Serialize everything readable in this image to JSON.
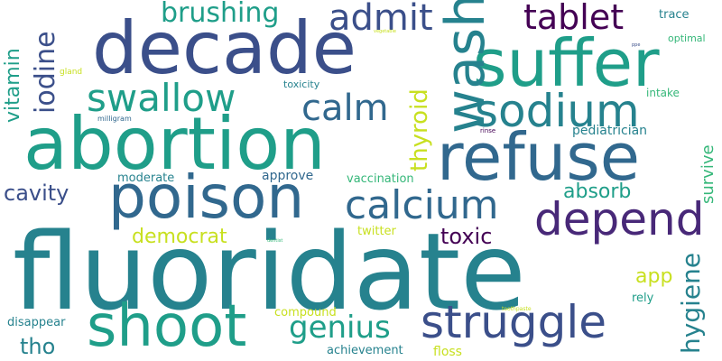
{
  "background": "#ffffff",
  "palette": {
    "navy": "#3b4f8a",
    "blue": "#31688e",
    "teal": "#26828e",
    "green": "#1f9e89",
    "lightgreen": "#35b779",
    "lime": "#6ece58",
    "yellow": "#c8e020",
    "purple": "#482878",
    "darkpurple": "#440154"
  },
  "words": {
    "fluoridate": "fluoridate",
    "abortion": "abortion",
    "decade": "decade",
    "suffer": "suffer",
    "refuse": "refuse",
    "poison": "poison",
    "shoot": "shoot",
    "struggle": "struggle",
    "sodium": "sodium",
    "wash": "wash",
    "swallow": "swallow",
    "calcium": "calcium",
    "depend": "depend",
    "calm": "calm",
    "admit": "admit",
    "tablet": "tablet",
    "brushing": "brushing",
    "iodine": "iodine",
    "vitamin": "vitamin",
    "thyroid": "thyroid",
    "cavity": "cavity",
    "absorb": "absorb",
    "democrat": "democrat",
    "toxic": "toxic",
    "genius": "genius",
    "hygiene": "hygiene",
    "app": "app",
    "tho": "tho",
    "survive": "survive",
    "pediatrician": "pediatrician",
    "moderate": "moderate",
    "approve": "approve",
    "vaccination": "vaccination",
    "twitter": "twitter",
    "compound": "compound",
    "disappear": "disappear",
    "achievement": "achievement",
    "floss": "floss",
    "rely": "rely",
    "intake": "intake",
    "trace": "trace",
    "optimal": "optimal",
    "toxicity": "toxicity",
    "gland": "gland",
    "milligram": "milligram",
    "rinse": "rinse",
    "toothpaste": "toothpaste",
    "vegetable": "vegetable",
    "ppe": "ppe",
    "dentist": "dentist"
  }
}
